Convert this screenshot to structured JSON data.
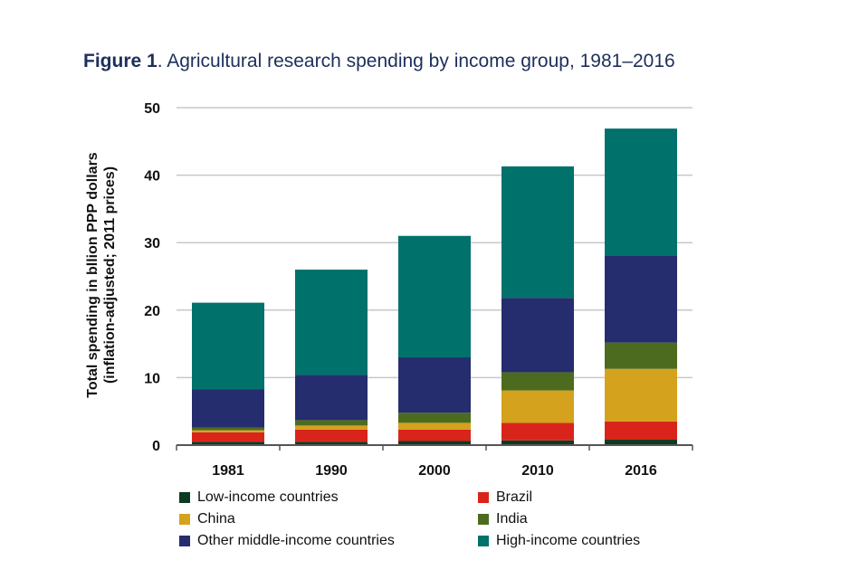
{
  "title": {
    "prefix": "Figure 1",
    "text": ". Agricultural research spending by income group, 1981–2016"
  },
  "chart_data": {
    "type": "bar",
    "stacked": true,
    "categories": [
      "1981",
      "1990",
      "2000",
      "2010",
      "2016"
    ],
    "ylabel_line1": "Total spending in bllion PPP dollars",
    "ylabel_line2": "(inflation-adjusted; 2011 prices)",
    "ylim": [
      0,
      50
    ],
    "yticks": [
      0,
      10,
      20,
      30,
      40,
      50
    ],
    "grid": true,
    "legend_position": "bottom",
    "series": [
      {
        "name": "Low-income countries",
        "color": "#0c3b22",
        "values": [
          0.5,
          0.5,
          0.6,
          0.7,
          0.8
        ]
      },
      {
        "name": "Brazil",
        "color": "#d9241b",
        "values": [
          1.4,
          1.8,
          1.7,
          2.6,
          2.7
        ]
      },
      {
        "name": "China",
        "color": "#d4a21c",
        "values": [
          0.3,
          0.6,
          1.0,
          4.8,
          7.8
        ]
      },
      {
        "name": "India",
        "color": "#4d6b1f",
        "values": [
          0.4,
          0.8,
          1.5,
          2.7,
          3.9
        ]
      },
      {
        "name": "Other middle-income countries",
        "color": "#252d6e",
        "values": [
          5.7,
          6.7,
          8.2,
          11.0,
          12.9
        ]
      },
      {
        "name": "High-income countries",
        "color": "#00716b",
        "values": [
          12.8,
          15.6,
          18.0,
          19.5,
          18.8
        ]
      }
    ]
  }
}
